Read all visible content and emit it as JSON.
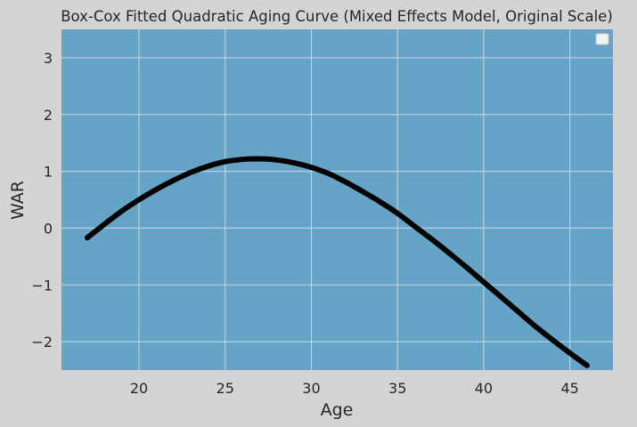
{
  "chart_data": {
    "type": "line",
    "title": "Box-Cox Fitted Quadratic Aging Curve (Mixed Effects Model, Original Scale)",
    "xlabel": "Age",
    "ylabel": "WAR",
    "xlim": [
      15.5,
      47.5
    ],
    "ylim": [
      -2.5,
      3.5
    ],
    "xticks": [
      20,
      25,
      30,
      35,
      40,
      45
    ],
    "yticks": [
      -2,
      -1,
      0,
      1,
      2,
      3
    ],
    "grid": true,
    "legend": "top-right",
    "colors": {
      "figure_bg": "#d4d4d4",
      "plot_bg": "#65a4c6",
      "grid": "#c8d8e2",
      "line": "#000000",
      "text": "#262626"
    },
    "series": [
      {
        "x": [
          17,
          18,
          19,
          20,
          21,
          22,
          23,
          24,
          25,
          26,
          27,
          28,
          29,
          30,
          31,
          32,
          33,
          34,
          35,
          36,
          37,
          38,
          39,
          40,
          41,
          42,
          43,
          44,
          45,
          46
        ],
        "y": [
          -0.17,
          0.07,
          0.3,
          0.5,
          0.68,
          0.84,
          0.98,
          1.09,
          1.17,
          1.21,
          1.22,
          1.2,
          1.15,
          1.07,
          0.96,
          0.81,
          0.64,
          0.46,
          0.26,
          0.03,
          -0.2,
          -0.44,
          -0.69,
          -0.95,
          -1.21,
          -1.47,
          -1.73,
          -1.97,
          -2.2,
          -2.42
        ]
      }
    ]
  }
}
